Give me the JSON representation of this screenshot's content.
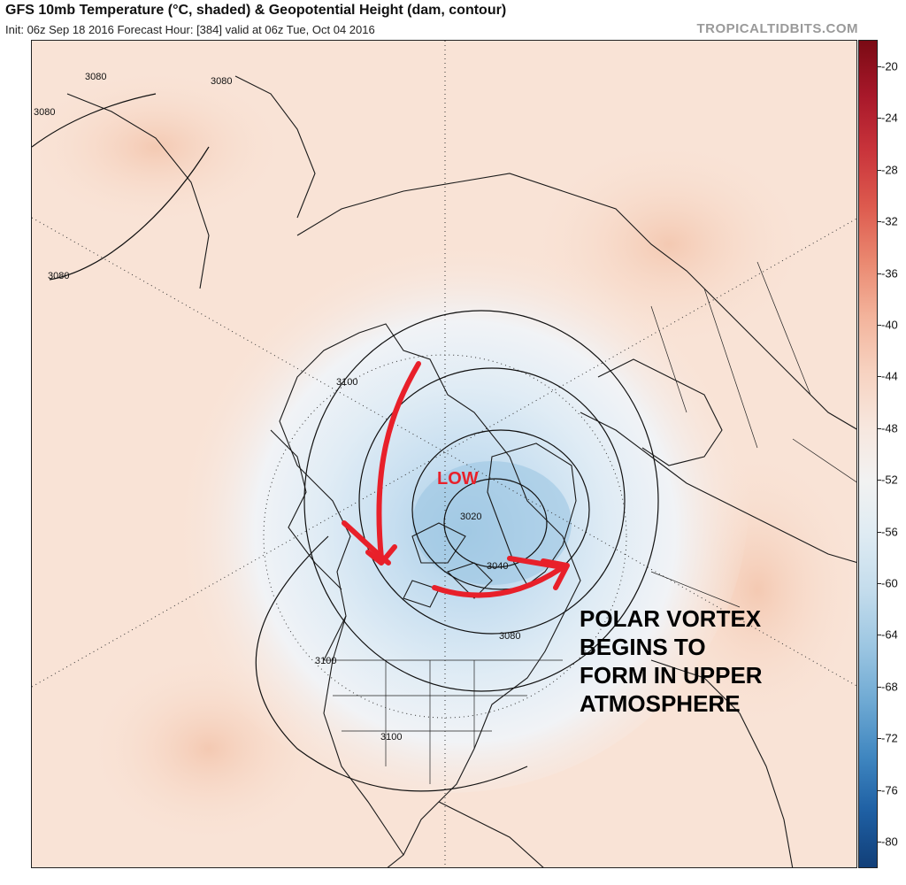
{
  "header": {
    "title": "GFS 10mb Temperature (°C, shaded) & Geopotential Height (dam, contour)",
    "subtitle": "Init: 06z Sep 18 2016   Forecast Hour: [384]   valid at 06z Tue, Oct 04 2016",
    "source": "TROPICALTIDBITS.COM"
  },
  "colorbar": {
    "ticks": [
      "-20",
      "-24",
      "-28",
      "-32",
      "-36",
      "-40",
      "-44",
      "-48",
      "-52",
      "-56",
      "-60",
      "-64",
      "-68",
      "-72",
      "-76",
      "-80"
    ],
    "colors": [
      "#7a0a14",
      "#a8182a",
      "#c9343b",
      "#dd5a4e",
      "#ea8870",
      "#f3b39b",
      "#f7d2c0",
      "#f7e7de",
      "#f2f2f2",
      "#deebf3",
      "#c3dcec",
      "#9cc6e2",
      "#6ea9d3",
      "#3f86c0",
      "#1e5fa3",
      "#123f78"
    ]
  },
  "contours": {
    "labels": [
      "3080",
      "3080",
      "3080",
      "3080",
      "3100",
      "3020",
      "3040",
      "3080",
      "3100",
      "3100"
    ]
  },
  "annotations": {
    "low": "LOW",
    "main_line1": "POLAR VORTEX",
    "main_line2": "BEGINS TO",
    "main_line3": "FORM IN UPPER",
    "main_line4": "ATMOSPHERE"
  },
  "colors": {
    "warm_background": "#f9e3d6",
    "cold_core": "#a9cde6",
    "arrow": "#e8202a"
  }
}
